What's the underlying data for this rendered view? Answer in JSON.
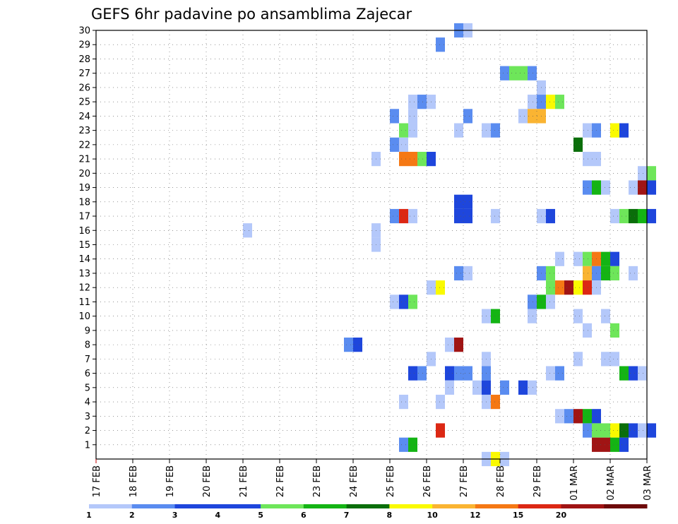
{
  "chart_data": {
    "type": "heatmap",
    "title": "GEFS 6hr padavine po ansamblima Zajecar",
    "xlabel": "",
    "ylabel": "",
    "x_ticks": [
      "17 FEB",
      "18 FEB",
      "19 FEB",
      "20 FEB",
      "21 FEB",
      "22 FEB",
      "23 FEB",
      "24 FEB",
      "25 FEB",
      "26 FEB",
      "27 FEB",
      "28 FEB",
      "29 FEB",
      "01 MAR",
      "02 MAR",
      "03 MAR"
    ],
    "y_ticks": [
      "1",
      "2",
      "3",
      "4",
      "5",
      "6",
      "7",
      "8",
      "9",
      "10",
      "11",
      "12",
      "13",
      "14",
      "15",
      "16",
      "17",
      "18",
      "19",
      "20",
      "21",
      "22",
      "23",
      "24",
      "25",
      "26",
      "27",
      "28",
      "29",
      "30"
    ],
    "x_range": [
      "17 FEB 00Z",
      "03 MAR 00Z"
    ],
    "y_range": [
      0,
      30
    ],
    "grid": true,
    "legend": {
      "position": "bottom",
      "labels": [
        "1",
        "2",
        "3",
        "4",
        "5",
        "6",
        "7",
        "8",
        "10",
        "12",
        "15",
        "20"
      ],
      "colors": [
        "#b4c8fa",
        "#5a8cf0",
        "#1e46dc",
        "#1e46dc",
        "#6ee65a",
        "#14b414",
        "#0a6e0a",
        "#fafa00",
        "#fab432",
        "#f57814",
        "#dc2814",
        "#a01414",
        "#6e0a0a"
      ]
    },
    "cells": [
      {
        "d": 9.75,
        "m": 30,
        "c": 2
      },
      {
        "d": 10.0,
        "m": 30,
        "c": 1
      },
      {
        "d": 9.25,
        "m": 29,
        "c": 2
      },
      {
        "d": 11.0,
        "m": 27,
        "c": 2
      },
      {
        "d": 11.25,
        "m": 27,
        "c": 5
      },
      {
        "d": 11.5,
        "m": 27,
        "c": 5
      },
      {
        "d": 11.75,
        "m": 27,
        "c": 2
      },
      {
        "d": 12.0,
        "m": 26,
        "c": 1
      },
      {
        "d": 8.5,
        "m": 25,
        "c": 1
      },
      {
        "d": 8.75,
        "m": 25,
        "c": 2
      },
      {
        "d": 9.0,
        "m": 25,
        "c": 1
      },
      {
        "d": 11.75,
        "m": 25,
        "c": 1
      },
      {
        "d": 12.0,
        "m": 25,
        "c": 2
      },
      {
        "d": 12.25,
        "m": 25,
        "c": 8
      },
      {
        "d": 12.5,
        "m": 25,
        "c": 5
      },
      {
        "d": 8.0,
        "m": 24,
        "c": 2
      },
      {
        "d": 8.5,
        "m": 24,
        "c": 1
      },
      {
        "d": 10.0,
        "m": 24,
        "c": 2
      },
      {
        "d": 11.5,
        "m": 24,
        "c": 1
      },
      {
        "d": 11.75,
        "m": 24,
        "c": 9
      },
      {
        "d": 12.0,
        "m": 24,
        "c": 9
      },
      {
        "d": 8.25,
        "m": 23,
        "c": 5
      },
      {
        "d": 8.5,
        "m": 23,
        "c": 1
      },
      {
        "d": 9.75,
        "m": 23,
        "c": 1
      },
      {
        "d": 10.5,
        "m": 23,
        "c": 1
      },
      {
        "d": 10.75,
        "m": 23,
        "c": 2
      },
      {
        "d": 13.25,
        "m": 23,
        "c": 1
      },
      {
        "d": 13.5,
        "m": 23,
        "c": 2
      },
      {
        "d": 14.0,
        "m": 23,
        "c": 8
      },
      {
        "d": 14.25,
        "m": 23,
        "c": 3
      },
      {
        "d": 8.0,
        "m": 22,
        "c": 2
      },
      {
        "d": 8.25,
        "m": 22,
        "c": 1
      },
      {
        "d": 13.0,
        "m": 22,
        "c": 7
      },
      {
        "d": 7.5,
        "m": 21,
        "c": 1
      },
      {
        "d": 8.25,
        "m": 21,
        "c": 10
      },
      {
        "d": 8.5,
        "m": 21,
        "c": 10
      },
      {
        "d": 8.75,
        "m": 21,
        "c": 5
      },
      {
        "d": 9.0,
        "m": 21,
        "c": 3
      },
      {
        "d": 13.25,
        "m": 21,
        "c": 1
      },
      {
        "d": 13.5,
        "m": 21,
        "c": 1
      },
      {
        "d": 14.75,
        "m": 20,
        "c": 1
      },
      {
        "d": 15.0,
        "m": 20,
        "c": 5
      },
      {
        "d": 13.25,
        "m": 19,
        "c": 2
      },
      {
        "d": 13.5,
        "m": 19,
        "c": 6
      },
      {
        "d": 13.75,
        "m": 19,
        "c": 1
      },
      {
        "d": 14.5,
        "m": 19,
        "c": 1
      },
      {
        "d": 14.75,
        "m": 19,
        "c": 12
      },
      {
        "d": 15.0,
        "m": 19,
        "c": 3
      },
      {
        "d": 9.75,
        "m": 18,
        "c": 3
      },
      {
        "d": 10.0,
        "m": 18,
        "c": 3
      },
      {
        "d": 8.0,
        "m": 17,
        "c": 2
      },
      {
        "d": 8.25,
        "m": 17,
        "c": 11
      },
      {
        "d": 8.5,
        "m": 17,
        "c": 1
      },
      {
        "d": 9.75,
        "m": 17,
        "c": 3
      },
      {
        "d": 10.0,
        "m": 17,
        "c": 3
      },
      {
        "d": 10.75,
        "m": 17,
        "c": 1
      },
      {
        "d": 12.0,
        "m": 17,
        "c": 1
      },
      {
        "d": 12.25,
        "m": 17,
        "c": 3
      },
      {
        "d": 14.0,
        "m": 17,
        "c": 1
      },
      {
        "d": 14.25,
        "m": 17,
        "c": 5
      },
      {
        "d": 14.5,
        "m": 17,
        "c": 7
      },
      {
        "d": 14.75,
        "m": 17,
        "c": 6
      },
      {
        "d": 15.0,
        "m": 17,
        "c": 3
      },
      {
        "d": 4.0,
        "m": 16,
        "c": 1
      },
      {
        "d": 7.5,
        "m": 16,
        "c": 1
      },
      {
        "d": 7.5,
        "m": 15,
        "c": 1
      },
      {
        "d": 12.5,
        "m": 14,
        "c": 1
      },
      {
        "d": 13.0,
        "m": 14,
        "c": 1
      },
      {
        "d": 13.25,
        "m": 14,
        "c": 5
      },
      {
        "d": 13.5,
        "m": 14,
        "c": 10
      },
      {
        "d": 13.75,
        "m": 14,
        "c": 6
      },
      {
        "d": 14.0,
        "m": 14,
        "c": 3
      },
      {
        "d": 9.75,
        "m": 13,
        "c": 2
      },
      {
        "d": 10.0,
        "m": 13,
        "c": 1
      },
      {
        "d": 12.0,
        "m": 13,
        "c": 2
      },
      {
        "d": 12.25,
        "m": 13,
        "c": 5
      },
      {
        "d": 13.25,
        "m": 13,
        "c": 9
      },
      {
        "d": 13.5,
        "m": 13,
        "c": 2
      },
      {
        "d": 13.75,
        "m": 13,
        "c": 6
      },
      {
        "d": 14.0,
        "m": 13,
        "c": 5
      },
      {
        "d": 14.5,
        "m": 13,
        "c": 1
      },
      {
        "d": 9.0,
        "m": 12,
        "c": 1
      },
      {
        "d": 9.25,
        "m": 12,
        "c": 8
      },
      {
        "d": 12.25,
        "m": 12,
        "c": 5
      },
      {
        "d": 12.5,
        "m": 12,
        "c": 10
      },
      {
        "d": 12.75,
        "m": 12,
        "c": 12
      },
      {
        "d": 13.0,
        "m": 12,
        "c": 8
      },
      {
        "d": 13.25,
        "m": 12,
        "c": 11
      },
      {
        "d": 13.5,
        "m": 12,
        "c": 1
      },
      {
        "d": 8.0,
        "m": 11,
        "c": 1
      },
      {
        "d": 8.25,
        "m": 11,
        "c": 3
      },
      {
        "d": 8.5,
        "m": 11,
        "c": 5
      },
      {
        "d": 11.75,
        "m": 11,
        "c": 2
      },
      {
        "d": 12.0,
        "m": 11,
        "c": 6
      },
      {
        "d": 12.25,
        "m": 11,
        "c": 1
      },
      {
        "d": 10.5,
        "m": 10,
        "c": 1
      },
      {
        "d": 10.75,
        "m": 10,
        "c": 6
      },
      {
        "d": 11.75,
        "m": 10,
        "c": 1
      },
      {
        "d": 13.0,
        "m": 10,
        "c": 1
      },
      {
        "d": 13.75,
        "m": 10,
        "c": 1
      },
      {
        "d": 13.25,
        "m": 9,
        "c": 1
      },
      {
        "d": 14.0,
        "m": 9,
        "c": 5
      },
      {
        "d": 6.75,
        "m": 8,
        "c": 2
      },
      {
        "d": 7.0,
        "m": 8,
        "c": 3
      },
      {
        "d": 9.5,
        "m": 8,
        "c": 1
      },
      {
        "d": 9.75,
        "m": 8,
        "c": 12
      },
      {
        "d": 9.0,
        "m": 7,
        "c": 1
      },
      {
        "d": 10.5,
        "m": 7,
        "c": 1
      },
      {
        "d": 13.0,
        "m": 7,
        "c": 1
      },
      {
        "d": 13.75,
        "m": 7,
        "c": 1
      },
      {
        "d": 14.0,
        "m": 7,
        "c": 1
      },
      {
        "d": 8.5,
        "m": 6,
        "c": 3
      },
      {
        "d": 8.75,
        "m": 6,
        "c": 2
      },
      {
        "d": 9.5,
        "m": 6,
        "c": 3
      },
      {
        "d": 9.75,
        "m": 6,
        "c": 2
      },
      {
        "d": 10.0,
        "m": 6,
        "c": 2
      },
      {
        "d": 10.5,
        "m": 6,
        "c": 2
      },
      {
        "d": 12.25,
        "m": 6,
        "c": 1
      },
      {
        "d": 12.5,
        "m": 6,
        "c": 2
      },
      {
        "d": 14.25,
        "m": 6,
        "c": 6
      },
      {
        "d": 14.5,
        "m": 6,
        "c": 3
      },
      {
        "d": 14.75,
        "m": 6,
        "c": 1
      },
      {
        "d": 9.5,
        "m": 5,
        "c": 1
      },
      {
        "d": 10.25,
        "m": 5,
        "c": 1
      },
      {
        "d": 10.5,
        "m": 5,
        "c": 3
      },
      {
        "d": 11.0,
        "m": 5,
        "c": 2
      },
      {
        "d": 11.5,
        "m": 5,
        "c": 3
      },
      {
        "d": 11.75,
        "m": 5,
        "c": 1
      },
      {
        "d": 8.25,
        "m": 4,
        "c": 1
      },
      {
        "d": 9.25,
        "m": 4,
        "c": 1
      },
      {
        "d": 10.5,
        "m": 4,
        "c": 1
      },
      {
        "d": 10.75,
        "m": 4,
        "c": 10
      },
      {
        "d": 12.5,
        "m": 3,
        "c": 1
      },
      {
        "d": 12.75,
        "m": 3,
        "c": 2
      },
      {
        "d": 13.0,
        "m": 3,
        "c": 12
      },
      {
        "d": 13.25,
        "m": 3,
        "c": 6
      },
      {
        "d": 13.5,
        "m": 3,
        "c": 3
      },
      {
        "d": 9.25,
        "m": 2,
        "c": 11
      },
      {
        "d": 13.25,
        "m": 2,
        "c": 2
      },
      {
        "d": 13.5,
        "m": 2,
        "c": 5
      },
      {
        "d": 13.75,
        "m": 2,
        "c": 5
      },
      {
        "d": 14.0,
        "m": 2,
        "c": 8
      },
      {
        "d": 14.25,
        "m": 2,
        "c": 7
      },
      {
        "d": 14.5,
        "m": 2,
        "c": 3
      },
      {
        "d": 14.75,
        "m": 2,
        "c": 1
      },
      {
        "d": 15.0,
        "m": 2,
        "c": 3
      },
      {
        "d": 8.25,
        "m": 1,
        "c": 2
      },
      {
        "d": 8.5,
        "m": 1,
        "c": 6
      },
      {
        "d": 13.5,
        "m": 1,
        "c": 12
      },
      {
        "d": 13.75,
        "m": 1,
        "c": 12
      },
      {
        "d": 14.0,
        "m": 1,
        "c": 6
      },
      {
        "d": 14.25,
        "m": 1,
        "c": 3
      },
      {
        "d": 10.5,
        "m": 0,
        "c": 1
      },
      {
        "d": 10.75,
        "m": 0,
        "c": 8
      },
      {
        "d": 11.0,
        "m": 0,
        "c": 1
      }
    ]
  }
}
